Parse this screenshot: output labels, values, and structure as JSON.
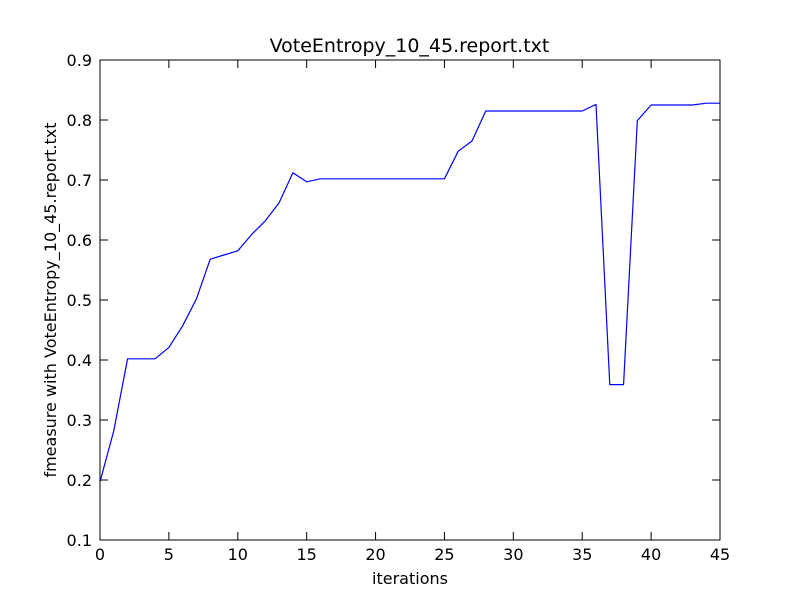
{
  "chart_data": {
    "type": "line",
    "title": "VoteEntropy_10_45.report.txt",
    "xlabel": "iterations",
    "ylabel": "fmeasure with VoteEntropy_10_45.report.txt",
    "xlim": [
      0,
      45
    ],
    "ylim": [
      0.1,
      0.9
    ],
    "xticks": [
      0,
      5,
      10,
      15,
      20,
      25,
      30,
      35,
      40,
      45
    ],
    "yticks": [
      0.1,
      0.2,
      0.3,
      0.4,
      0.5,
      0.6,
      0.7,
      0.8,
      0.9
    ],
    "xtick_labels": [
      "0",
      "5",
      "10",
      "15",
      "20",
      "25",
      "30",
      "35",
      "40",
      "45"
    ],
    "ytick_labels": [
      "0.1",
      "0.2",
      "0.3",
      "0.4",
      "0.5",
      "0.6",
      "0.7",
      "0.8",
      "0.9"
    ],
    "grid": false,
    "series": [
      {
        "color": "#0000ff",
        "x": [
          0,
          1,
          2,
          3,
          4,
          5,
          6,
          7,
          8,
          9,
          10,
          11,
          12,
          13,
          14,
          15,
          16,
          17,
          18,
          19,
          20,
          21,
          22,
          23,
          24,
          25,
          26,
          27,
          28,
          29,
          30,
          31,
          32,
          33,
          34,
          35,
          36,
          37,
          38,
          39,
          40,
          41,
          42,
          43,
          44,
          45
        ],
        "y": [
          0.197,
          0.282,
          0.402,
          0.402,
          0.402,
          0.421,
          0.457,
          0.502,
          0.568,
          0.575,
          0.582,
          0.609,
          0.632,
          0.662,
          0.712,
          0.697,
          0.702,
          0.702,
          0.702,
          0.702,
          0.702,
          0.702,
          0.702,
          0.702,
          0.702,
          0.702,
          0.748,
          0.765,
          0.815,
          0.815,
          0.815,
          0.815,
          0.815,
          0.815,
          0.815,
          0.815,
          0.826,
          0.359,
          0.359,
          0.799,
          0.825,
          0.825,
          0.825,
          0.825,
          0.828,
          0.828
        ]
      }
    ]
  }
}
